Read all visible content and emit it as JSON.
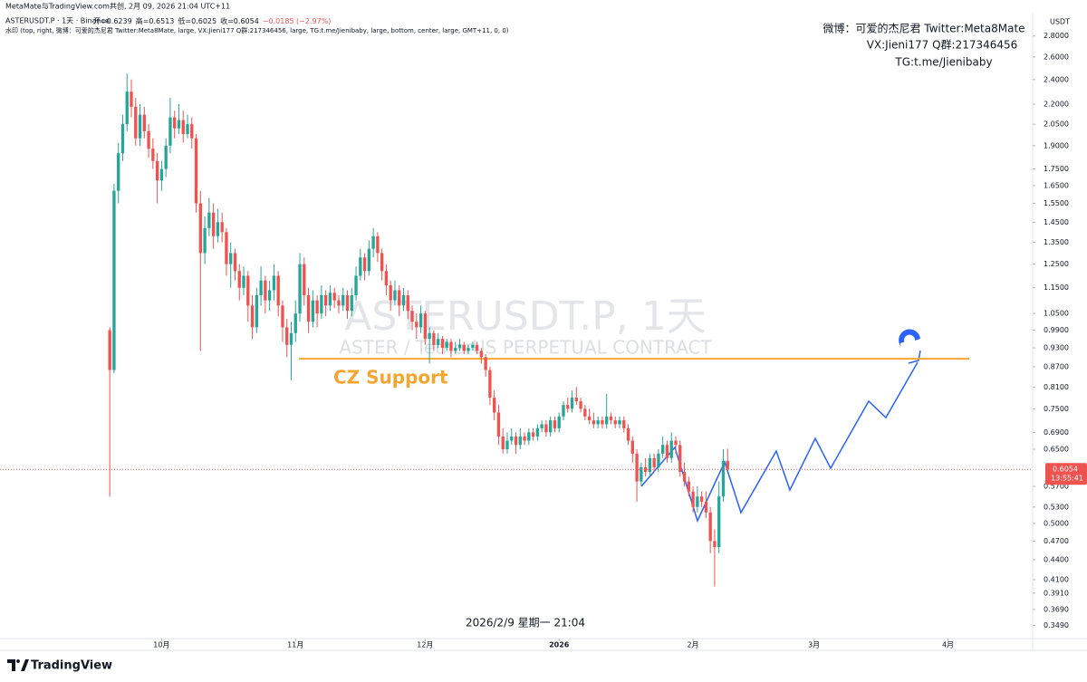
{
  "header": {
    "share_line": "MetaMate与TradingView.com共创, 2月 09, 2026 21:04 UTC+11"
  },
  "footer": {
    "brand": "TradingView"
  },
  "chart_data": {
    "type": "candlestick",
    "title": "ASTERUSDT.P, 1天",
    "subtitle": "ASTER / TetherUS PERPETUAL CONTRACT",
    "symbol_line": "ASTERUSDT.P · 1天 · Binance",
    "ohlc_labels": [
      "开=0.6239",
      "高=0.6513",
      "低=0.6025",
      "收=0.6054",
      "−0.0185 (−2.97%)"
    ],
    "watermark_config": "水印 (top, right, 微博：可爱的杰尼君 Twitter:Meta8Mate, large, VX:Jieni177 Q群:217346456, large, TG:t.me/Jienibaby, large, bottom, center, large, GMT+11, 0, 0)",
    "watermark_lines": [
      "微博：可爱的杰尼君 Twitter:Meta8Mate",
      "VX:Jieni177 Q群:217346456",
      "TG:t.me/Jienibaby"
    ],
    "crosshair_label": "2026/2/9 星期一 21:04",
    "y_unit": "USDT",
    "last_price": {
      "value": 0.6054,
      "label": "0.6054"
    },
    "countdown": "13:55:41",
    "support": {
      "label": "CZ Support",
      "value": 0.895,
      "color": "#f7a531"
    },
    "up_color": "#26a69a",
    "down_color": "#ef5350",
    "projection_color": "#2962ff",
    "log_scale": true,
    "grid": false,
    "xlim": [
      -25.4,
      213.6
    ],
    "xticks": [
      {
        "value": 12,
        "label": "10月"
      },
      {
        "value": 43,
        "label": "11月"
      },
      {
        "value": 73,
        "label": "12月"
      },
      {
        "value": 104,
        "label": "2026"
      },
      {
        "value": 135,
        "label": "2月"
      },
      {
        "value": 163,
        "label": "3月"
      },
      {
        "value": 194,
        "label": "4月"
      }
    ],
    "ylim": [
      0.333,
      3.04
    ],
    "yticks": [
      {
        "value": 2.8,
        "label": "2.8000"
      },
      {
        "value": 2.6,
        "label": "2.6000"
      },
      {
        "value": 2.4,
        "label": "2.4000"
      },
      {
        "value": 2.2,
        "label": "2.2000"
      },
      {
        "value": 2.05,
        "label": "2.0500"
      },
      {
        "value": 1.9,
        "label": "1.9000"
      },
      {
        "value": 1.75,
        "label": "1.7500"
      },
      {
        "value": 1.65,
        "label": "1.6500"
      },
      {
        "value": 1.55,
        "label": "1.5500"
      },
      {
        "value": 1.45,
        "label": "1.4500"
      },
      {
        "value": 1.35,
        "label": "1.3500"
      },
      {
        "value": 1.25,
        "label": "1.2500"
      },
      {
        "value": 1.15,
        "label": "1.1500"
      },
      {
        "value": 1.05,
        "label": "1.0500"
      },
      {
        "value": 0.99,
        "label": "0.9900"
      },
      {
        "value": 0.93,
        "label": "0.9300"
      },
      {
        "value": 0.87,
        "label": "0.8700"
      },
      {
        "value": 0.81,
        "label": "0.8100"
      },
      {
        "value": 0.75,
        "label": "0.7500"
      },
      {
        "value": 0.69,
        "label": "0.6900"
      },
      {
        "value": 0.65,
        "label": "0.6500"
      },
      {
        "value": 0.57,
        "label": "0.5700"
      },
      {
        "value": 0.53,
        "label": "0.5300"
      },
      {
        "value": 0.5,
        "label": "0.5000"
      },
      {
        "value": 0.47,
        "label": "0.4700"
      },
      {
        "value": 0.44,
        "label": "0.4400"
      },
      {
        "value": 0.41,
        "label": "0.4100"
      },
      {
        "value": 0.391,
        "label": "0.3910"
      },
      {
        "value": 0.369,
        "label": "0.3690"
      },
      {
        "value": 0.349,
        "label": "0.3490"
      }
    ],
    "candles": [
      [
        0.99,
        1.0,
        0.55,
        0.86
      ],
      [
        0.86,
        1.66,
        0.85,
        1.62
      ],
      [
        1.62,
        1.92,
        1.55,
        1.85
      ],
      [
        1.85,
        2.12,
        1.8,
        2.05
      ],
      [
        2.05,
        2.45,
        2.0,
        2.3
      ],
      [
        2.3,
        2.4,
        2.1,
        2.18
      ],
      [
        2.18,
        2.25,
        1.9,
        1.95
      ],
      [
        1.95,
        2.2,
        1.9,
        2.12
      ],
      [
        2.12,
        2.18,
        1.95,
        2.0
      ],
      [
        2.0,
        2.05,
        1.82,
        1.88
      ],
      [
        1.88,
        1.95,
        1.75,
        1.8
      ],
      [
        1.8,
        1.85,
        1.55,
        1.68
      ],
      [
        1.68,
        1.8,
        1.62,
        1.75
      ],
      [
        1.75,
        1.95,
        1.7,
        1.9
      ],
      [
        1.9,
        2.25,
        1.85,
        2.1
      ],
      [
        2.1,
        2.15,
        1.95,
        2.02
      ],
      [
        2.02,
        2.2,
        1.98,
        2.08
      ],
      [
        2.08,
        2.15,
        1.92,
        1.98
      ],
      [
        1.98,
        2.12,
        1.95,
        2.05
      ],
      [
        2.05,
        2.1,
        1.88,
        1.95
      ],
      [
        1.95,
        1.98,
        1.5,
        1.55
      ],
      [
        1.55,
        1.62,
        0.92,
        1.3
      ],
      [
        1.3,
        1.48,
        1.25,
        1.42
      ],
      [
        1.42,
        1.58,
        1.38,
        1.5
      ],
      [
        1.5,
        1.55,
        1.32,
        1.38
      ],
      [
        1.38,
        1.52,
        1.35,
        1.45
      ],
      [
        1.45,
        1.5,
        1.35,
        1.4
      ],
      [
        1.4,
        1.42,
        1.2,
        1.25
      ],
      [
        1.25,
        1.35,
        1.15,
        1.3
      ],
      [
        1.3,
        1.32,
        1.18,
        1.22
      ],
      [
        1.22,
        1.25,
        1.1,
        1.15
      ],
      [
        1.15,
        1.24,
        1.12,
        1.2
      ],
      [
        1.2,
        1.22,
        1.02,
        1.08
      ],
      [
        1.08,
        1.12,
        0.96,
        1.0
      ],
      [
        1.0,
        1.15,
        0.98,
        1.12
      ],
      [
        1.12,
        1.24,
        1.08,
        1.18
      ],
      [
        1.18,
        1.2,
        1.05,
        1.1
      ],
      [
        1.1,
        1.18,
        1.06,
        1.14
      ],
      [
        1.14,
        1.25,
        1.1,
        1.2
      ],
      [
        1.2,
        1.22,
        1.04,
        1.08
      ],
      [
        1.08,
        1.1,
        0.95,
        1.0
      ],
      [
        1.0,
        1.03,
        0.9,
        0.94
      ],
      [
        0.94,
        1.02,
        0.83,
        0.98
      ],
      [
        0.98,
        1.1,
        0.95,
        1.05
      ],
      [
        1.05,
        1.3,
        1.02,
        1.25
      ],
      [
        1.25,
        1.28,
        1.08,
        1.12
      ],
      [
        1.12,
        1.15,
        0.98,
        1.02
      ],
      [
        1.02,
        1.14,
        1.0,
        1.1
      ],
      [
        1.1,
        1.12,
        1.0,
        1.05
      ],
      [
        1.05,
        1.16,
        1.03,
        1.12
      ],
      [
        1.12,
        1.14,
        1.04,
        1.08
      ],
      [
        1.08,
        1.16,
        1.06,
        1.13
      ],
      [
        1.13,
        1.15,
        1.07,
        1.1
      ],
      [
        1.1,
        1.12,
        1.05,
        1.08
      ],
      [
        1.08,
        1.15,
        1.06,
        1.12
      ],
      [
        1.12,
        1.14,
        1.03,
        1.06
      ],
      [
        1.06,
        1.15,
        1.04,
        1.12
      ],
      [
        1.12,
        1.24,
        1.1,
        1.2
      ],
      [
        1.2,
        1.32,
        1.18,
        1.28
      ],
      [
        1.28,
        1.3,
        1.18,
        1.22
      ],
      [
        1.22,
        1.36,
        1.2,
        1.32
      ],
      [
        1.32,
        1.42,
        1.28,
        1.38
      ],
      [
        1.38,
        1.4,
        1.26,
        1.3
      ],
      [
        1.3,
        1.32,
        1.18,
        1.22
      ],
      [
        1.22,
        1.25,
        1.12,
        1.16
      ],
      [
        1.16,
        1.18,
        1.06,
        1.1
      ],
      [
        1.1,
        1.18,
        1.08,
        1.14
      ],
      [
        1.14,
        1.16,
        1.04,
        1.08
      ],
      [
        1.08,
        1.15,
        1.06,
        1.12
      ],
      [
        1.12,
        1.14,
        1.03,
        1.06
      ],
      [
        1.06,
        1.08,
        0.99,
        1.02
      ],
      [
        1.02,
        1.05,
        0.96,
        1.0
      ],
      [
        1.0,
        1.08,
        0.98,
        1.05
      ],
      [
        1.05,
        1.06,
        0.94,
        0.96
      ],
      [
        0.96,
        1.0,
        0.88,
        0.98
      ],
      [
        0.98,
        0.99,
        0.92,
        0.94
      ],
      [
        0.94,
        0.98,
        0.93,
        0.96
      ],
      [
        0.96,
        0.97,
        0.91,
        0.93
      ],
      [
        0.93,
        0.96,
        0.92,
        0.95
      ],
      [
        0.95,
        0.96,
        0.9,
        0.92
      ],
      [
        0.92,
        0.95,
        0.91,
        0.93
      ],
      [
        0.93,
        0.96,
        0.92,
        0.94
      ],
      [
        0.94,
        0.95,
        0.91,
        0.92
      ],
      [
        0.92,
        0.94,
        0.91,
        0.93
      ],
      [
        0.93,
        0.95,
        0.92,
        0.94
      ],
      [
        0.94,
        0.95,
        0.91,
        0.92
      ],
      [
        0.92,
        0.93,
        0.88,
        0.9
      ],
      [
        0.9,
        0.91,
        0.84,
        0.86
      ],
      [
        0.86,
        0.87,
        0.76,
        0.78
      ],
      [
        0.78,
        0.8,
        0.72,
        0.74
      ],
      [
        0.74,
        0.76,
        0.66,
        0.68
      ],
      [
        0.68,
        0.7,
        0.64,
        0.65
      ],
      [
        0.65,
        0.69,
        0.64,
        0.67
      ],
      [
        0.67,
        0.7,
        0.66,
        0.68
      ],
      [
        0.68,
        0.69,
        0.64,
        0.66
      ],
      [
        0.66,
        0.7,
        0.65,
        0.68
      ],
      [
        0.68,
        0.69,
        0.66,
        0.67
      ],
      [
        0.67,
        0.7,
        0.66,
        0.69
      ],
      [
        0.69,
        0.7,
        0.67,
        0.68
      ],
      [
        0.68,
        0.71,
        0.67,
        0.7
      ],
      [
        0.7,
        0.72,
        0.69,
        0.71
      ],
      [
        0.71,
        0.72,
        0.68,
        0.69
      ],
      [
        0.69,
        0.73,
        0.68,
        0.72
      ],
      [
        0.72,
        0.73,
        0.69,
        0.7
      ],
      [
        0.7,
        0.74,
        0.69,
        0.73
      ],
      [
        0.73,
        0.77,
        0.72,
        0.76
      ],
      [
        0.76,
        0.78,
        0.74,
        0.75
      ],
      [
        0.75,
        0.8,
        0.74,
        0.78
      ],
      [
        0.78,
        0.81,
        0.76,
        0.77
      ],
      [
        0.77,
        0.78,
        0.74,
        0.75
      ],
      [
        0.75,
        0.76,
        0.72,
        0.73
      ],
      [
        0.73,
        0.75,
        0.71,
        0.72
      ],
      [
        0.72,
        0.74,
        0.7,
        0.71
      ],
      [
        0.71,
        0.73,
        0.7,
        0.72
      ],
      [
        0.72,
        0.73,
        0.7,
        0.71
      ],
      [
        0.71,
        0.79,
        0.7,
        0.73
      ],
      [
        0.73,
        0.74,
        0.71,
        0.72
      ],
      [
        0.72,
        0.73,
        0.7,
        0.71
      ],
      [
        0.71,
        0.73,
        0.7,
        0.72
      ],
      [
        0.72,
        0.73,
        0.69,
        0.7
      ],
      [
        0.7,
        0.71,
        0.66,
        0.67
      ],
      [
        0.67,
        0.68,
        0.62,
        0.64
      ],
      [
        0.64,
        0.65,
        0.54,
        0.58
      ],
      [
        0.58,
        0.62,
        0.57,
        0.61
      ],
      [
        0.61,
        0.63,
        0.59,
        0.6
      ],
      [
        0.6,
        0.64,
        0.59,
        0.63
      ],
      [
        0.63,
        0.64,
        0.6,
        0.61
      ],
      [
        0.61,
        0.65,
        0.6,
        0.64
      ],
      [
        0.64,
        0.68,
        0.63,
        0.66
      ],
      [
        0.66,
        0.67,
        0.62,
        0.63
      ],
      [
        0.63,
        0.69,
        0.62,
        0.67
      ],
      [
        0.67,
        0.68,
        0.64,
        0.66
      ],
      [
        0.66,
        0.67,
        0.59,
        0.6
      ],
      [
        0.6,
        0.62,
        0.57,
        0.58
      ],
      [
        0.58,
        0.59,
        0.55,
        0.56
      ],
      [
        0.56,
        0.57,
        0.52,
        0.53
      ],
      [
        0.53,
        0.57,
        0.52,
        0.55
      ],
      [
        0.55,
        0.56,
        0.53,
        0.54
      ],
      [
        0.54,
        0.56,
        0.51,
        0.52
      ],
      [
        0.52,
        0.53,
        0.45,
        0.47
      ],
      [
        0.47,
        0.49,
        0.4,
        0.46
      ],
      [
        0.46,
        0.58,
        0.45,
        0.55
      ],
      [
        0.55,
        0.65,
        0.54,
        0.6239
      ],
      [
        0.6239,
        0.6513,
        0.6025,
        0.6054
      ]
    ]
  }
}
